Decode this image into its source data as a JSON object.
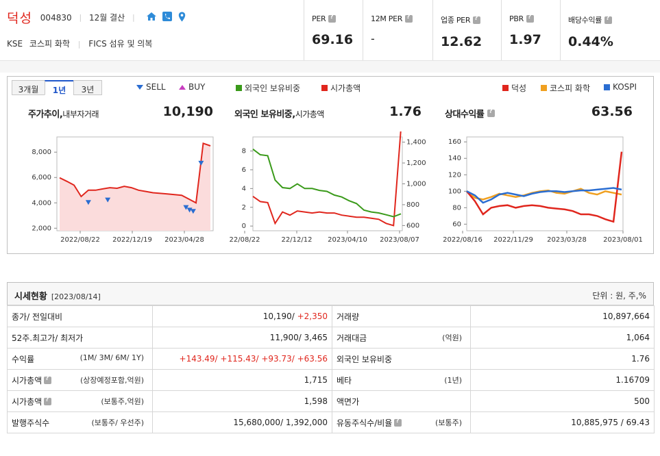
{
  "header": {
    "company_name": "덕성",
    "code": "004830",
    "settlement": "12월 결산",
    "market": "KSE",
    "sector1": "코스피 화학",
    "sector2": "FICS 섬유 및 의복",
    "metrics": [
      {
        "label": "PER",
        "value": "69.16"
      },
      {
        "label": "12M PER",
        "value": "-"
      },
      {
        "label": "업종 PER",
        "value": "12.62"
      },
      {
        "label": "PBR",
        "value": "1.97"
      },
      {
        "label": "배당수익률",
        "value": "0.44%"
      }
    ]
  },
  "tabs": [
    {
      "label": "3개월"
    },
    {
      "label": "1년"
    },
    {
      "label": "3년"
    }
  ],
  "legend": {
    "sell": "SELL",
    "buy": "BUY",
    "foreign": "외국인 보유비중",
    "mcap": "시가총액",
    "stock": "덕성",
    "sector": "코스피 화학",
    "kospi": "KOSPI"
  },
  "colors": {
    "red": "#e0261d",
    "green": "#3a9a1a",
    "orange": "#f0a020",
    "blue": "#2a6dd1",
    "magenta": "#c83ec0"
  },
  "panels": [
    {
      "title": "주가추이,",
      "title_sub": "내부자거래",
      "value": "10,190"
    },
    {
      "title": "외국인 보유비중,",
      "title_sub": "시가총액",
      "value": "1.76"
    },
    {
      "title": "상대수익률",
      "title_sub": "",
      "value": "63.56"
    }
  ],
  "chart_data": [
    {
      "type": "area",
      "series": [
        {
          "name": "덕성",
          "values": [
            5980,
            5700,
            5400,
            4500,
            5000,
            5000,
            5100,
            5200,
            5150,
            5300,
            5200,
            5000,
            4900,
            4800,
            4750,
            4700,
            4650,
            4600,
            4300,
            4000,
            8700,
            8500
          ]
        }
      ],
      "x_tick_labels": [
        "2022/08/22",
        "2022/12/19",
        "2023/04/28"
      ],
      "y_tick_labels": [
        "2,000",
        "4,000",
        "6,000",
        "8,000"
      ],
      "ylim": [
        1800,
        9200
      ],
      "sell_markers": [
        4000,
        4200,
        3600,
        3400,
        3300,
        7100
      ],
      "buy_markers": []
    },
    {
      "type": "line",
      "series": [
        {
          "name": "외국인 보유비중",
          "values": [
            8.2,
            7.6,
            7.5,
            4.9,
            4.1,
            4.0,
            4.5,
            4.0,
            4.0,
            3.8,
            3.7,
            3.3,
            3.1,
            2.7,
            2.4,
            1.7,
            1.5,
            1.4,
            1.2,
            1.0,
            1.3
          ]
        },
        {
          "name": "시가총액",
          "values": [
            880,
            830,
            820,
            620,
            730,
            700,
            740,
            730,
            720,
            730,
            720,
            720,
            700,
            690,
            680,
            680,
            670,
            660,
            620,
            600,
            1530
          ]
        }
      ],
      "x_tick_labels": [
        "22/08/22",
        "22/12/12",
        "2023/04/10",
        "2023/08/07"
      ],
      "y_left_tick_labels": [
        "0",
        "2",
        "4",
        "6",
        "8"
      ],
      "y_right_tick_labels": [
        "600",
        "800",
        "1,000",
        "1,200",
        "1,400"
      ],
      "ylim_left": [
        -0.5,
        9.5
      ],
      "ylim_right": [
        550,
        1450
      ]
    },
    {
      "type": "line",
      "series": [
        {
          "name": "덕성",
          "values": [
            100,
            88,
            72,
            80,
            82,
            83,
            80,
            82,
            83,
            82,
            80,
            79,
            78,
            76,
            72,
            72,
            70,
            66,
            63,
            148
          ]
        },
        {
          "name": "코스피 화학",
          "values": [
            100,
            92,
            90,
            93,
            97,
            95,
            93,
            95,
            98,
            100,
            101,
            98,
            97,
            100,
            103,
            98,
            96,
            100,
            98,
            96
          ]
        },
        {
          "name": "KOSPI",
          "values": [
            100,
            95,
            86,
            90,
            96,
            98,
            96,
            94,
            97,
            99,
            100,
            100,
            99,
            100,
            101,
            101,
            102,
            103,
            104,
            102
          ]
        }
      ],
      "x_tick_labels": [
        "2022/08/16",
        "2022/11/29",
        "2023/03/28",
        "2023/08/01"
      ],
      "y_tick_labels": [
        "60",
        "80",
        "100",
        "120",
        "140",
        "160"
      ],
      "ylim": [
        52,
        166
      ]
    }
  ],
  "table": {
    "title": "시세현황",
    "date": "[2023/08/14]",
    "unit": "단위 : 원, 주,%",
    "rows": [
      {
        "l1": "종가/ 전일대비",
        "l1_sub": "",
        "v1": "10,190/ ",
        "v1_red": "+2,350",
        "l2": "거래량",
        "l2_sub": "",
        "v2": "10,897,664"
      },
      {
        "l1": "52주.최고가/ 최저가",
        "l1_sub": "",
        "v1": "11,900/ 3,465",
        "v1_red": "",
        "l2": "거래대금",
        "l2_sub": "(억원)",
        "v2": "1,064"
      },
      {
        "l1": "수익률",
        "l1_sub": "(1M/ 3M/ 6M/ 1Y)",
        "v1": "",
        "v1_red": "+143.49/ +115.43/ +93.73/ +63.56",
        "l2": "외국인 보유비중",
        "l2_sub": "",
        "v2": "1.76"
      },
      {
        "l1": "시가총액",
        "l1_sub": "(상장예정포함,억원)",
        "v1": "1,715",
        "v1_red": "",
        "l2": "베타",
        "l2_sub": "(1년)",
        "v2": "1.16709"
      },
      {
        "l1": "시가총액",
        "l1_sub": "(보통주,억원)",
        "v1": "1,598",
        "v1_red": "",
        "l2": "액면가",
        "l2_sub": "",
        "v2": "500"
      },
      {
        "l1": "발행주식수",
        "l1_sub": "(보통주/ 우선주)",
        "v1": "15,680,000/ 1,392,000",
        "v1_red": "",
        "l2": "유동주식수/비율",
        "l2_sub": "(보통주)",
        "v2": "10,885,975 / 69.43"
      }
    ]
  }
}
